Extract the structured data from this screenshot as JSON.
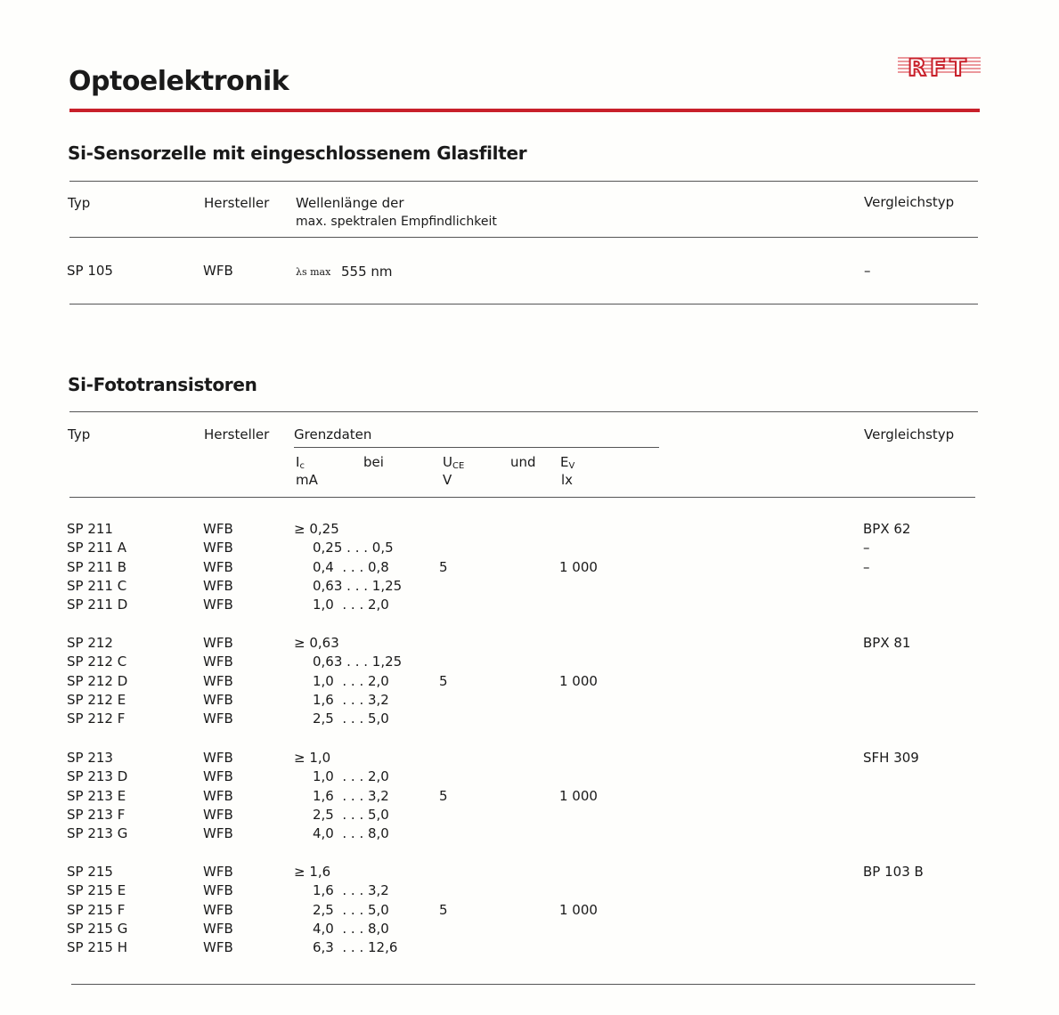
{
  "header": {
    "title": "Optoelektronik",
    "logo_text": "RFT",
    "accent": "#c8202a"
  },
  "section1": {
    "title": "Si-Sensorzelle mit eingeschlossenem Glasfilter",
    "columns": {
      "typ": "Typ",
      "hersteller": "Hersteller",
      "wellen1": "Wellenlänge der",
      "wellen2": "max. spektralen Empfindlichkeit",
      "vergleich": "Vergleichstyp"
    },
    "row": {
      "typ": "SP 105",
      "hersteller": "WFB",
      "symbol": "λs max",
      "value": "555 nm",
      "vergleich": "–"
    }
  },
  "section2": {
    "title": "Si-Fototransistoren",
    "columns": {
      "typ": "Typ",
      "hersteller": "Hersteller",
      "grenzdaten": "Grenzdaten",
      "ic": "I",
      "ic_sub": "c",
      "bei": "bei",
      "uce": "U",
      "uce_sub": "CE",
      "und": "und",
      "ev": "E",
      "ev_sub": "V",
      "ic_unit": "mA",
      "uce_unit": "V",
      "ev_unit": "lx",
      "vergleich": "Vergleichstyp"
    },
    "groups": [
      {
        "uce": "5",
        "ev": "1 000",
        "rows": [
          {
            "typ": "SP 211",
            "hersteller": "WFB",
            "ic": "≥ 0,25",
            "vergleich": "BPX 62"
          },
          {
            "typ": "SP 211 A",
            "hersteller": "WFB",
            "ic": "0,25 . . . 0,5",
            "vergleich": "–"
          },
          {
            "typ": "SP 211 B",
            "hersteller": "WFB",
            "ic": "0,4  . . . 0,8",
            "vergleich": "–"
          },
          {
            "typ": "SP 211 C",
            "hersteller": "WFB",
            "ic": "0,63 . . . 1,25",
            "vergleich": ""
          },
          {
            "typ": "SP 211 D",
            "hersteller": "WFB",
            "ic": "1,0  . . . 2,0",
            "vergleich": ""
          }
        ]
      },
      {
        "uce": "5",
        "ev": "1 000",
        "rows": [
          {
            "typ": "SP 212",
            "hersteller": "WFB",
            "ic": "≥ 0,63",
            "vergleich": "BPX 81"
          },
          {
            "typ": "SP 212 C",
            "hersteller": "WFB",
            "ic": "0,63 . . . 1,25",
            "vergleich": ""
          },
          {
            "typ": "SP 212 D",
            "hersteller": "WFB",
            "ic": "1,0  . . . 2,0",
            "vergleich": ""
          },
          {
            "typ": "SP 212 E",
            "hersteller": "WFB",
            "ic": "1,6  . . . 3,2",
            "vergleich": ""
          },
          {
            "typ": "SP 212 F",
            "hersteller": "WFB",
            "ic": "2,5  . . . 5,0",
            "vergleich": ""
          }
        ]
      },
      {
        "uce": "5",
        "ev": "1 000",
        "rows": [
          {
            "typ": "SP 213",
            "hersteller": "WFB",
            "ic": "≥ 1,0",
            "vergleich": "SFH 309"
          },
          {
            "typ": "SP 213 D",
            "hersteller": "WFB",
            "ic": "1,0  . . . 2,0",
            "vergleich": ""
          },
          {
            "typ": "SP 213 E",
            "hersteller": "WFB",
            "ic": "1,6  . . . 3,2",
            "vergleich": ""
          },
          {
            "typ": "SP 213 F",
            "hersteller": "WFB",
            "ic": "2,5  . . . 5,0",
            "vergleich": ""
          },
          {
            "typ": "SP 213 G",
            "hersteller": "WFB",
            "ic": "4,0  . . . 8,0",
            "vergleich": ""
          }
        ]
      },
      {
        "uce": "5",
        "ev": "1 000",
        "rows": [
          {
            "typ": "SP 215",
            "hersteller": "WFB",
            "ic": "≥ 1,6",
            "vergleich": "BP 103 B"
          },
          {
            "typ": "SP 215 E",
            "hersteller": "WFB",
            "ic": "1,6  . . . 3,2",
            "vergleich": ""
          },
          {
            "typ": "SP 215 F",
            "hersteller": "WFB",
            "ic": "2,5  . . . 5,0",
            "vergleich": ""
          },
          {
            "typ": "SP 215 G",
            "hersteller": "WFB",
            "ic": "4,0  . . . 8,0",
            "vergleich": ""
          },
          {
            "typ": "SP 215 H",
            "hersteller": "WFB",
            "ic": "6,3  . . . 12,6",
            "vergleich": ""
          }
        ]
      }
    ]
  }
}
